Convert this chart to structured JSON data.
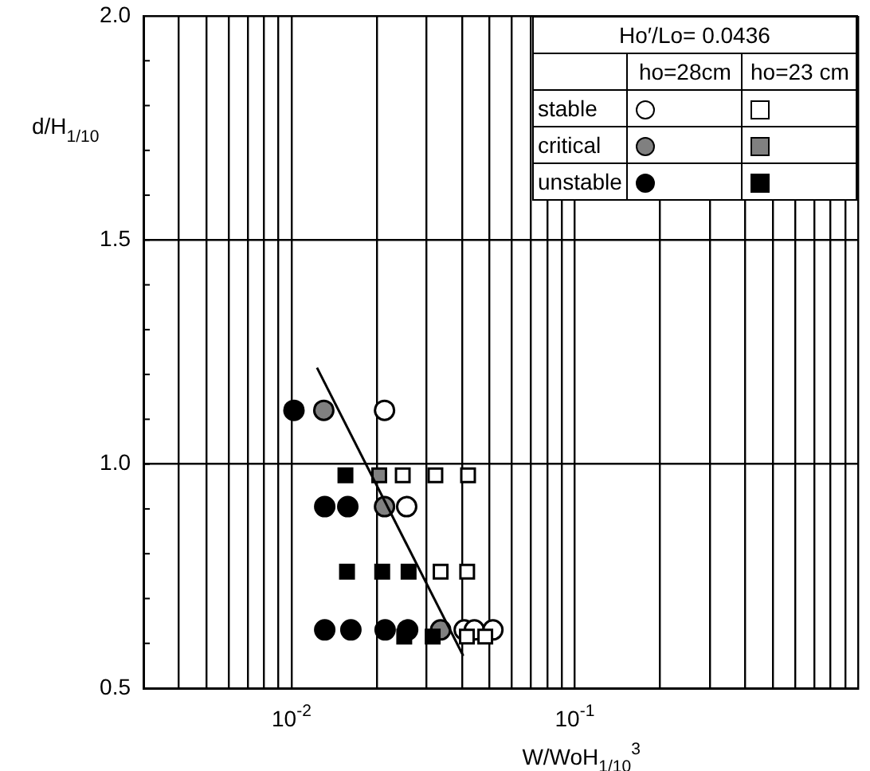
{
  "chart_data": {
    "type": "scatter",
    "xlabel": "W/WoH$_{1/10}$$^{3}$",
    "ylabel": "d/H$_{1/10}$",
    "legend_title": "Ho′/Lo= 0.0436",
    "annotations": [
      "ho=28cm",
      "ho=23 cm"
    ],
    "log": "x",
    "grid": true,
    "legend": "top right",
    "xlim": [
      0.003,
      1
    ],
    "xticks": [
      {
        "value": 0.003,
        "label": null
      },
      {
        "value": 0.004,
        "label": null
      },
      {
        "value": 0.005,
        "label": null
      },
      {
        "value": 0.006,
        "label": null
      },
      {
        "value": 0.007,
        "label": null
      },
      {
        "value": 0.008,
        "label": null
      },
      {
        "value": 0.009,
        "label": null
      },
      {
        "value": 0.01,
        "label": "10$^{-2}$"
      },
      {
        "value": 0.02,
        "label": null
      },
      {
        "value": 0.03,
        "label": null
      },
      {
        "value": 0.04,
        "label": null
      },
      {
        "value": 0.05,
        "label": null
      },
      {
        "value": 0.06,
        "label": null
      },
      {
        "value": 0.07,
        "label": null
      },
      {
        "value": 0.08,
        "label": null
      },
      {
        "value": 0.09,
        "label": null
      },
      {
        "value": 0.1,
        "label": "10$^{-1}$"
      },
      {
        "value": 0.2,
        "label": null
      },
      {
        "value": 0.3,
        "label": null
      },
      {
        "value": 0.4,
        "label": null
      },
      {
        "value": 0.5,
        "label": null
      },
      {
        "value": 0.6,
        "label": null
      },
      {
        "value": 0.7,
        "label": null
      },
      {
        "value": 0.8,
        "label": null
      },
      {
        "value": 0.9,
        "label": null
      },
      {
        "value": 1,
        "label": null
      }
    ],
    "ylim": [
      0.5,
      2.0
    ],
    "yticks": [
      {
        "value": 0.5,
        "label": "0.5"
      },
      {
        "value": 0.6,
        "label": null
      },
      {
        "value": 0.7,
        "label": null
      },
      {
        "value": 0.8,
        "label": null
      },
      {
        "value": 0.9,
        "label": null
      },
      {
        "value": 1.0,
        "label": "1.0"
      },
      {
        "value": 1.1,
        "label": null
      },
      {
        "value": 1.2,
        "label": null
      },
      {
        "value": 1.3,
        "label": null
      },
      {
        "value": 1.4,
        "label": null
      },
      {
        "value": 1.5,
        "label": "1.5"
      },
      {
        "value": 1.6,
        "label": null
      },
      {
        "value": 1.7,
        "label": null
      },
      {
        "value": 1.8,
        "label": null
      },
      {
        "value": 1.9,
        "label": null
      },
      {
        "value": 2.0,
        "label": "2.0"
      }
    ],
    "series": [
      {
        "name": "stable",
        "color": "#ffffff",
        "marker": "circle",
        "x": [
          0.0213,
          0.0255,
          0.0407,
          0.0442,
          0.0514
        ],
        "values": [
          1.12,
          0.905,
          0.63,
          0.63,
          0.63
        ]
      },
      {
        "name": "critical",
        "color": "#808080",
        "marker": "circle",
        "x": [
          0.013,
          0.0213,
          0.0336
        ],
        "values": [
          1.12,
          0.905,
          0.63
        ]
      },
      {
        "name": "unstable",
        "color": "#000000",
        "marker": "circle",
        "x": [
          0.0102,
          0.0131,
          0.0158,
          0.0131,
          0.0162,
          0.0214,
          0.0257
        ],
        "values": [
          1.12,
          0.905,
          0.905,
          0.63,
          0.63,
          0.63,
          0.63
        ]
      },
      {
        "color": "#ffffff",
        "marker": "square",
        "x": [
          0.0247,
          0.0322,
          0.042,
          0.0336,
          0.0417,
          0.0416,
          0.0483
        ],
        "values": [
          0.975,
          0.975,
          0.975,
          0.76,
          0.76,
          0.615,
          0.615
        ]
      },
      {
        "color": "#808080",
        "marker": "square",
        "x": [
          0.0204
        ],
        "values": [
          0.975
        ]
      },
      {
        "color": "#000000",
        "marker": "square",
        "x": [
          0.0155,
          0.0157,
          0.0209,
          0.0259,
          0.025,
          0.0315
        ],
        "values": [
          0.975,
          0.76,
          0.76,
          0.76,
          0.615,
          0.615
        ]
      },
      {
        "type": "line",
        "color": "#000000",
        "marker": "none",
        "x": [
          0.0123,
          0.0404
        ],
        "values": [
          1.215,
          0.572
        ]
      }
    ]
  }
}
